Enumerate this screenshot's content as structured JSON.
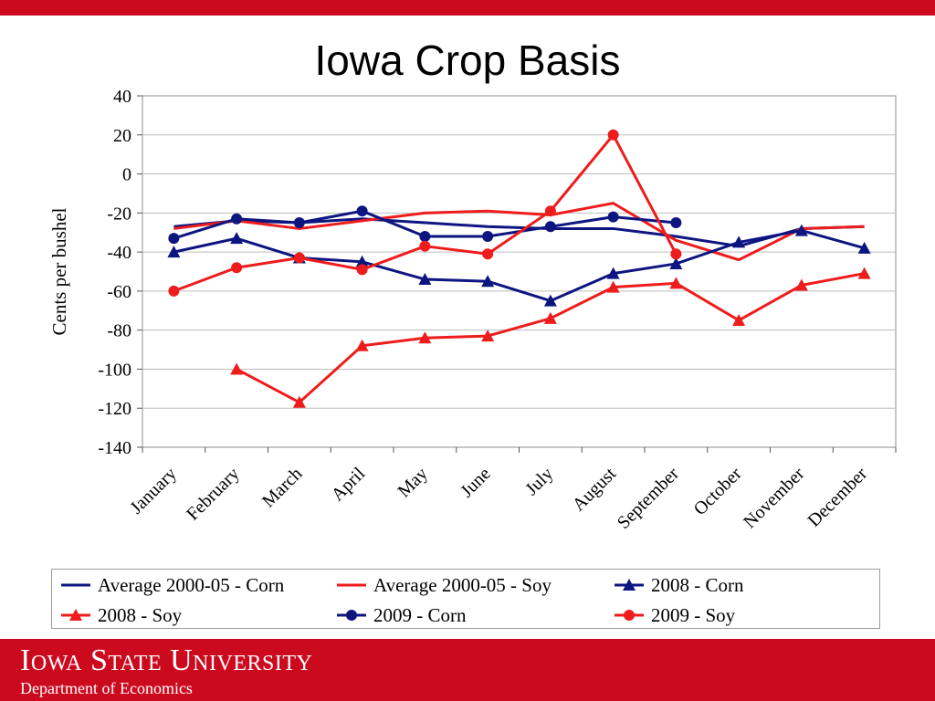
{
  "header": {
    "title": "Iowa Crop Basis"
  },
  "footer": {
    "university": "Iowa State University",
    "department": "Department of Economics"
  },
  "colors": {
    "corn": "#0d1580",
    "soy": "#ee1c1c",
    "brand": "#cc0a1e"
  },
  "chart_data": {
    "type": "line",
    "title": "Iowa Crop Basis",
    "xlabel": "",
    "ylabel": "Cents per bushel",
    "ylim": [
      -140,
      40
    ],
    "yticks": [
      40,
      20,
      0,
      -20,
      -40,
      -60,
      -80,
      -100,
      -120,
      -140
    ],
    "ytick_labels": [
      "40",
      "20",
      "0",
      "-20",
      "-40",
      "-60",
      "-80",
      "-100",
      "-120",
      "-140"
    ],
    "categories": [
      "January",
      "February",
      "March",
      "April",
      "May",
      "June",
      "July",
      "August",
      "September",
      "October",
      "November",
      "December"
    ],
    "grid": "horizontal",
    "legend_position": "bottom",
    "series": [
      {
        "name": "Average 2000-05 - Corn",
        "color": "#0d1580",
        "marker": "none",
        "values": [
          -27,
          -24,
          -25,
          -23,
          -25,
          -27,
          -28,
          -28,
          -32,
          -37,
          -28,
          -27
        ]
      },
      {
        "name": "Average 2000-05 - Soy",
        "color": "#ee1c1c",
        "marker": "none",
        "values": [
          -28,
          -24,
          -28,
          -24,
          -20,
          -19,
          -21,
          -15,
          -34,
          -44,
          -28,
          -27
        ]
      },
      {
        "name": "2008 - Corn",
        "color": "#0d1580",
        "marker": "triangle",
        "values": [
          -40,
          -33,
          -43,
          -45,
          -54,
          -55,
          -65,
          -51,
          -46,
          -35,
          -29,
          -38
        ]
      },
      {
        "name": "2008 - Soy",
        "color": "#ee1c1c",
        "marker": "triangle",
        "values": [
          null,
          -100,
          -117,
          -88,
          -84,
          -83,
          -74,
          -58,
          -56,
          -75,
          -57,
          -51
        ]
      },
      {
        "name": "2009 - Corn",
        "color": "#0d1580",
        "marker": "circle",
        "values": [
          -33,
          -23,
          -25,
          -19,
          -32,
          -32,
          -27,
          -22,
          -25,
          null,
          null,
          null
        ]
      },
      {
        "name": "2009 - Soy",
        "color": "#ee1c1c",
        "marker": "circle",
        "values": [
          -60,
          -48,
          -43,
          -49,
          -37,
          -41,
          -19,
          20,
          -41,
          null,
          null,
          null
        ]
      }
    ]
  }
}
